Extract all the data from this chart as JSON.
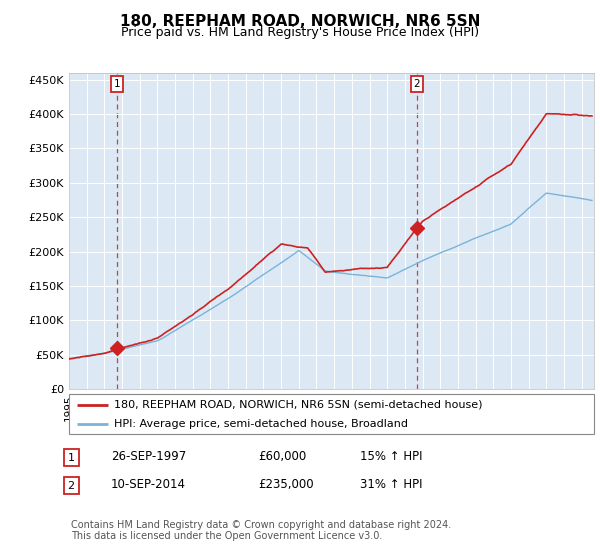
{
  "title": "180, REEPHAM ROAD, NORWICH, NR6 5SN",
  "subtitle": "Price paid vs. HM Land Registry's House Price Index (HPI)",
  "ylim": [
    0,
    460000
  ],
  "yticks": [
    0,
    50000,
    100000,
    150000,
    200000,
    250000,
    300000,
    350000,
    400000,
    450000
  ],
  "ytick_labels": [
    "£0",
    "£50K",
    "£100K",
    "£150K",
    "£200K",
    "£250K",
    "£300K",
    "£350K",
    "£400K",
    "£450K"
  ],
  "xlim_start": 1995.0,
  "xlim_end": 2024.7,
  "sale1_date": 1997.73,
  "sale1_price": 60000,
  "sale1_label": "1",
  "sale2_date": 2014.69,
  "sale2_price": 235000,
  "sale2_label": "2",
  "hpi_color": "#7ab3d9",
  "price_color": "#cc2222",
  "marker_color": "#cc2222",
  "dashed_color": "#cc2222",
  "legend_label1": "180, REEPHAM ROAD, NORWICH, NR6 5SN (semi-detached house)",
  "legend_label2": "HPI: Average price, semi-detached house, Broadland",
  "table_row1": [
    "1",
    "26-SEP-1997",
    "£60,000",
    "15% ↑ HPI"
  ],
  "table_row2": [
    "2",
    "10-SEP-2014",
    "£235,000",
    "31% ↑ HPI"
  ],
  "footnote": "Contains HM Land Registry data © Crown copyright and database right 2024.\nThis data is licensed under the Open Government Licence v3.0.",
  "plot_bg": "#dce9f5",
  "title_fontsize": 11,
  "subtitle_fontsize": 9,
  "tick_fontsize": 8,
  "legend_fontsize": 8,
  "table_fontsize": 8.5,
  "footnote_fontsize": 7
}
